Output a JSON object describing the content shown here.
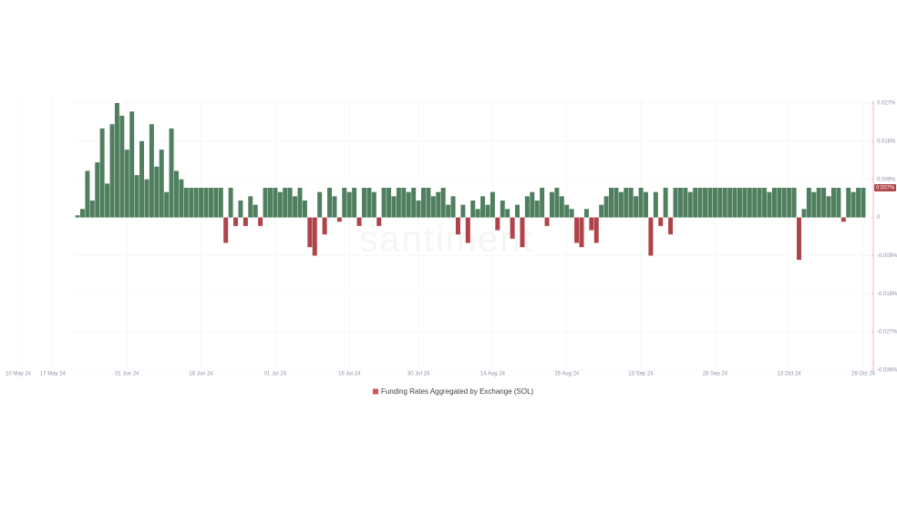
{
  "chart_data": {
    "type": "bar",
    "legend": "Funding Rates Aggregated by Exchange (SOL)",
    "watermark": "santiment",
    "current_value": 0.007,
    "current_label": "0.007%",
    "positive_color": "#4f7f5e",
    "negative_color": "#b0434a",
    "legend_color": "#d9534f",
    "grid": true,
    "ylim": [
      -0.036,
      0.027
    ],
    "yticks": [
      {
        "value": 0.027,
        "label": "0.027%"
      },
      {
        "value": 0.018,
        "label": "0.018%"
      },
      {
        "value": 0.009,
        "label": "0.009%"
      },
      0,
      {
        "value": -0.009,
        "label": "-0.009%"
      },
      {
        "value": -0.018,
        "label": "-0.018%"
      },
      {
        "value": -0.027,
        "label": "-0.027%"
      },
      {
        "value": -0.036,
        "label": "-0.036%"
      }
    ],
    "categories": [
      "10 May 24",
      null,
      null,
      null,
      null,
      null,
      null,
      "17 May 24",
      null,
      null,
      null,
      null,
      null,
      null,
      null,
      null,
      null,
      null,
      null,
      null,
      null,
      null,
      "01 Jun 24",
      null,
      null,
      null,
      null,
      null,
      null,
      null,
      null,
      null,
      null,
      null,
      null,
      null,
      null,
      "16 Jun 24",
      null,
      null,
      null,
      null,
      null,
      null,
      null,
      null,
      null,
      null,
      null,
      null,
      null,
      null,
      "01 Jul 24",
      null,
      null,
      null,
      null,
      null,
      null,
      null,
      null,
      null,
      null,
      null,
      null,
      null,
      null,
      "16 Jul 24",
      null,
      null,
      null,
      null,
      null,
      null,
      null,
      null,
      null,
      null,
      null,
      null,
      null,
      "30 Jul 24",
      null,
      null,
      null,
      null,
      null,
      null,
      null,
      null,
      null,
      null,
      null,
      null,
      null,
      null,
      "14 Aug 24",
      null,
      null,
      null,
      null,
      null,
      null,
      null,
      null,
      null,
      null,
      null,
      null,
      null,
      null,
      "29 Aug 24",
      null,
      null,
      null,
      null,
      null,
      null,
      null,
      null,
      null,
      null,
      null,
      null,
      null,
      null,
      "13 Sep 24",
      null,
      null,
      null,
      null,
      null,
      null,
      null,
      null,
      null,
      null,
      null,
      null,
      null,
      null,
      "28 Sep 24",
      null,
      null,
      null,
      null,
      null,
      null,
      null,
      null,
      null,
      null,
      null,
      null,
      null,
      null,
      "13 Oct 24",
      null,
      null,
      null,
      null,
      null,
      null,
      null,
      null,
      null,
      null,
      null,
      null,
      null,
      null,
      "28 Oct 24"
    ],
    "values": [
      null,
      null,
      null,
      null,
      null,
      null,
      null,
      null,
      null,
      null,
      null,
      null,
      0.0005,
      0.002,
      0.011,
      0.004,
      0.013,
      0.021,
      0.008,
      0.022,
      0.027,
      0.024,
      0.016,
      0.025,
      0.01,
      0.018,
      0.009,
      0.022,
      0.012,
      0.016,
      0.006,
      0.021,
      0.011,
      0.009,
      0.007,
      0.007,
      0.007,
      0.007,
      0.007,
      0.007,
      0.007,
      0.007,
      -0.006,
      0.007,
      -0.002,
      0.004,
      -0.002,
      0.005,
      0.003,
      -0.002,
      0.007,
      0.007,
      0.007,
      0.006,
      0.007,
      0.007,
      0.005,
      0.007,
      0.004,
      -0.007,
      -0.009,
      0.006,
      -0.004,
      0.007,
      0.005,
      -0.001,
      0.007,
      0.006,
      0.007,
      -0.002,
      0.007,
      0.007,
      0.006,
      -0.002,
      0.007,
      0.007,
      0.005,
      0.007,
      0.007,
      0.006,
      0.007,
      0.004,
      0.007,
      0.007,
      0.005,
      0.006,
      0.007,
      0.003,
      0.005,
      -0.004,
      0.003,
      -0.006,
      0.004,
      0.002,
      0.005,
      0.003,
      0.006,
      -0.003,
      0.004,
      0.002,
      -0.005,
      0.003,
      -0.007,
      0.005,
      0.006,
      0.004,
      0.007,
      -0.002,
      0.006,
      0.007,
      0.005,
      0.003,
      0.002,
      -0.006,
      -0.007,
      0.002,
      -0.003,
      -0.006,
      0.003,
      0.005,
      0.007,
      0.007,
      0.006,
      0.007,
      0.007,
      0.005,
      0.007,
      0.006,
      -0.009,
      0.006,
      -0.002,
      0.007,
      -0.004,
      0.007,
      0.007,
      0.007,
      0.006,
      0.007,
      0.007,
      0.007,
      0.007,
      0.007,
      0.007,
      0.007,
      0.007,
      0.007,
      0.007,
      0.007,
      0.007,
      0.007,
      0.007,
      0.007,
      0.006,
      0.007,
      0.007,
      0.007,
      0.007,
      0.007,
      -0.01,
      0.002,
      0.007,
      0.006,
      0.007,
      0.007,
      0.005,
      0.007,
      0.007,
      -0.001,
      0.007,
      0.006,
      0.007,
      0.007
    ]
  }
}
